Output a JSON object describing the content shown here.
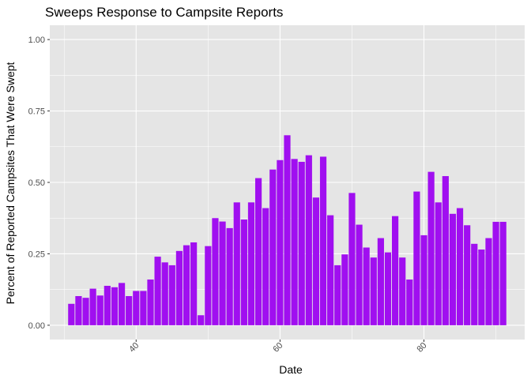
{
  "chart_data": {
    "type": "bar",
    "title": "Sweeps Response to Campsite Reports",
    "xlabel": "Date",
    "ylabel": "Percent of Reported Campsites That Were Swept",
    "x": [
      31,
      32,
      33,
      34,
      35,
      36,
      37,
      38,
      39,
      40,
      41,
      42,
      43,
      44,
      45,
      46,
      47,
      48,
      49,
      50,
      51,
      52,
      53,
      54,
      55,
      56,
      57,
      58,
      59,
      60,
      61,
      62,
      63,
      64,
      65,
      66,
      67,
      68,
      69,
      70,
      71,
      72,
      73,
      74,
      75,
      76,
      77,
      78,
      79,
      80,
      81,
      82,
      83,
      84,
      85,
      86,
      87,
      88,
      89,
      90,
      91
    ],
    "values": [
      0.075,
      0.102,
      0.096,
      0.128,
      0.104,
      0.138,
      0.133,
      0.148,
      0.102,
      0.12,
      0.12,
      0.16,
      0.24,
      0.22,
      0.21,
      0.26,
      0.28,
      0.29,
      0.035,
      0.277,
      0.375,
      0.363,
      0.34,
      0.43,
      0.37,
      0.43,
      0.515,
      0.41,
      0.545,
      0.578,
      0.665,
      0.582,
      0.572,
      0.595,
      0.447,
      0.59,
      0.385,
      0.21,
      0.248,
      0.463,
      0.352,
      0.272,
      0.237,
      0.305,
      0.255,
      0.382,
      0.237,
      0.16,
      0.468,
      0.315,
      0.537,
      0.43,
      0.522,
      0.39,
      0.41,
      0.35,
      0.285,
      0.265,
      0.305,
      0.362,
      0.362
    ],
    "xlim": [
      28,
      94
    ],
    "ylim": [
      -0.05,
      1.05
    ],
    "xticks": [
      40,
      60,
      80
    ],
    "xtick_labels": [
      "40",
      "60",
      "80"
    ],
    "yticks": [
      0,
      0.25,
      0.5,
      0.75,
      1
    ],
    "ytick_labels": [
      "0.00",
      "0.25",
      "0.50",
      "0.75",
      "1.00"
    ],
    "grid": true,
    "colors": {
      "bar": "#a00ff0",
      "panel": "#e5e5e5",
      "grid": "#ffffff"
    }
  }
}
